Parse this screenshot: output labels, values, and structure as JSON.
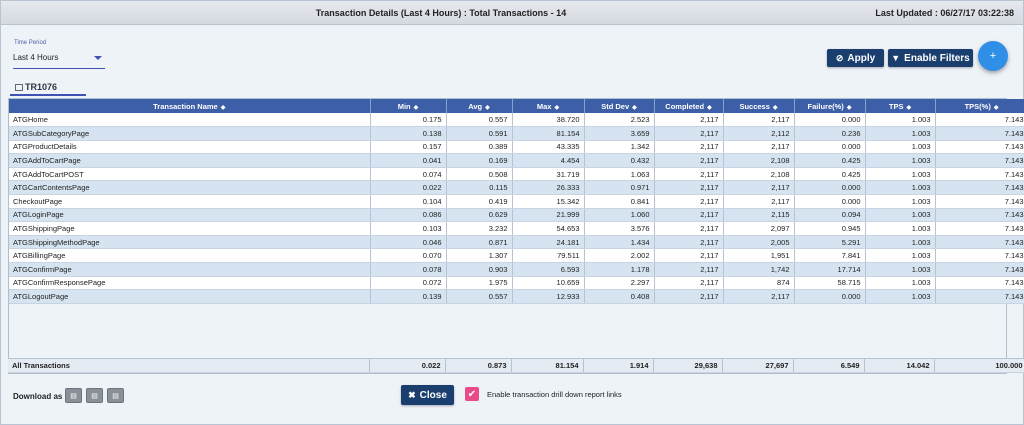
{
  "header": {
    "title": "Transaction Details (Last 4 Hours) : Total Transactions - 14",
    "last_updated": "Last Updated : 06/27/17 03:22:38"
  },
  "time_period": {
    "label": "Time Period",
    "value": "Last 4 Hours"
  },
  "toolbar": {
    "apply_label": "Apply",
    "filters_label": "Enable Filters",
    "fab_label": "+"
  },
  "tab": {
    "label": "TR1076"
  },
  "table": {
    "columns": [
      "Transaction Name",
      "Min",
      "Avg",
      "Max",
      "Std Dev",
      "Completed",
      "Success",
      "Failure(%)",
      "TPS",
      "TPS(%)"
    ],
    "rows": [
      [
        "ATGHome",
        "0.175",
        "0.557",
        "38.720",
        "2.523",
        "2,117",
        "2,117",
        "0.000",
        "1.003",
        "7.143"
      ],
      [
        "ATGSubCategoryPage",
        "0.138",
        "0.591",
        "81.154",
        "3.659",
        "2,117",
        "2,112",
        "0.236",
        "1.003",
        "7.143"
      ],
      [
        "ATGProductDetails",
        "0.157",
        "0.389",
        "43.335",
        "1.342",
        "2,117",
        "2,117",
        "0.000",
        "1.003",
        "7.143"
      ],
      [
        "ATGAddToCartPage",
        "0.041",
        "0.169",
        "4.454",
        "0.432",
        "2,117",
        "2,108",
        "0.425",
        "1.003",
        "7.143"
      ],
      [
        "ATGAddToCartPOST",
        "0.074",
        "0.508",
        "31.719",
        "1.063",
        "2,117",
        "2,108",
        "0.425",
        "1.003",
        "7.143"
      ],
      [
        "ATGCartContentsPage",
        "0.022",
        "0.115",
        "26.333",
        "0.971",
        "2,117",
        "2,117",
        "0.000",
        "1.003",
        "7.143"
      ],
      [
        "CheckoutPage",
        "0.104",
        "0.419",
        "15.342",
        "0.841",
        "2,117",
        "2,117",
        "0.000",
        "1.003",
        "7.143"
      ],
      [
        "ATGLoginPage",
        "0.086",
        "0.629",
        "21.999",
        "1.060",
        "2,117",
        "2,115",
        "0.094",
        "1.003",
        "7.143"
      ],
      [
        "ATGShippingPage",
        "0.103",
        "3.232",
        "54.653",
        "3.576",
        "2,117",
        "2,097",
        "0.945",
        "1.003",
        "7.143"
      ],
      [
        "ATGShippingMethodPage",
        "0.046",
        "0.871",
        "24.181",
        "1.434",
        "2,117",
        "2,005",
        "5.291",
        "1.003",
        "7.143"
      ],
      [
        "ATGBillingPage",
        "0.070",
        "1.307",
        "79.511",
        "2.002",
        "2,117",
        "1,951",
        "7.841",
        "1.003",
        "7.143"
      ],
      [
        "ATGConfirmPage",
        "0.078",
        "0.903",
        "6.593",
        "1.178",
        "2,117",
        "1,742",
        "17.714",
        "1.003",
        "7.143"
      ],
      [
        "ATGConfirmResponsePage",
        "0.072",
        "1.975",
        "10.659",
        "2.297",
        "2,117",
        "874",
        "58.715",
        "1.003",
        "7.143"
      ],
      [
        "ATGLogoutPage",
        "0.139",
        "0.557",
        "12.933",
        "0.408",
        "2,117",
        "2,117",
        "0.000",
        "1.003",
        "7.143"
      ]
    ],
    "totals": [
      "All Transactions",
      "0.022",
      "0.873",
      "81.154",
      "1.914",
      "29,638",
      "27,697",
      "6.549",
      "14.042",
      "100.000"
    ]
  },
  "footer": {
    "download_label": "Download as",
    "download_formats": [
      "pdf-icon",
      "word-icon",
      "excel-icon"
    ],
    "close_label": "Close",
    "drilldown_label": "Enable transaction drill down report links",
    "drilldown_checked": true
  },
  "colors": {
    "header_bg": "#3d5fa8",
    "button_bg": "#1a3f6f",
    "fab_bg": "#2f8fe6",
    "row_alt_bg": "#d6e4f1",
    "checkbox_bg": "#e84a8a"
  }
}
